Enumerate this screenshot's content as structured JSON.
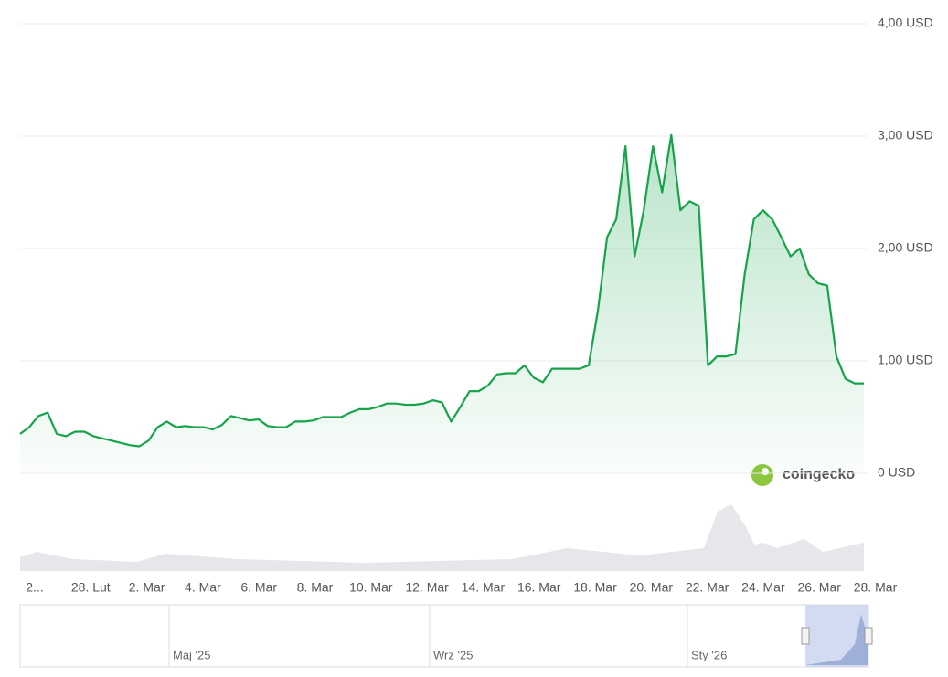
{
  "chart_data": {
    "type": "line",
    "brand": "coingecko",
    "color": "#16a34a",
    "values": [
      0.35,
      0.41,
      0.51,
      0.54,
      0.35,
      0.33,
      0.37,
      0.37,
      0.33,
      0.31,
      0.29,
      0.27,
      0.25,
      0.24,
      0.29,
      0.41,
      0.46,
      0.41,
      0.42,
      0.41,
      0.41,
      0.39,
      0.43,
      0.51,
      0.49,
      0.47,
      0.48,
      0.42,
      0.41,
      0.41,
      0.46,
      0.46,
      0.47,
      0.5,
      0.5,
      0.5,
      0.54,
      0.57,
      0.57,
      0.59,
      0.62,
      0.62,
      0.61,
      0.61,
      0.62,
      0.65,
      0.63,
      0.46,
      0.59,
      0.73,
      0.73,
      0.78,
      0.88,
      0.89,
      0.89,
      0.96,
      0.85,
      0.81,
      0.93,
      0.93,
      0.93,
      0.93,
      0.96,
      1.45,
      2.1,
      2.26,
      2.91,
      1.93,
      2.34,
      2.91,
      2.5,
      3.01,
      2.34,
      2.42,
      2.38,
      0.96,
      1.04,
      1.04,
      1.06,
      1.77,
      2.26,
      2.34,
      2.26,
      2.1,
      1.93,
      2.0,
      1.77,
      1.69,
      1.67,
      1.04,
      0.84,
      0.8,
      0.8
    ],
    "xtick_labels": [
      "2...",
      "28. Lut",
      "2. Mar",
      "4. Mar",
      "6. Mar",
      "8. Mar",
      "10. Mar",
      "12. Mar",
      "14. Mar",
      "16. Mar",
      "18. Mar",
      "20. Mar",
      "22. Mar",
      "24. Mar",
      "26. Mar",
      "28. Mar"
    ],
    "ylim": [
      0,
      4
    ],
    "yticks": [
      {
        "value": 0,
        "label": "0 USD"
      },
      {
        "value": 1,
        "label": "1,00 USD"
      },
      {
        "value": 2,
        "label": "2,00 USD"
      },
      {
        "value": 3,
        "label": "3,00 USD"
      },
      {
        "value": 4,
        "label": "4,00 USD"
      }
    ],
    "grid": true,
    "navigator_labels": [
      "Maj '25",
      "Wrz '25",
      "Sty '26"
    ]
  }
}
